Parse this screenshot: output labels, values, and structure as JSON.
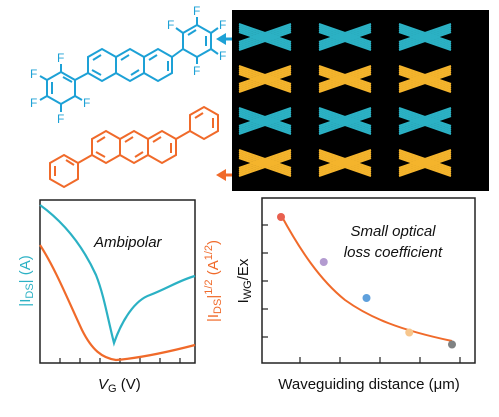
{
  "colors": {
    "blue": "#1da1d6",
    "orange": "#f06a2a",
    "gold": "#f4b42c",
    "teal": "#2bb1c4",
    "black": "#000000",
    "axis": "#222222"
  },
  "molecule_top": {
    "name_icon": "perfluorophenyl-anthracene-icon",
    "F": "F"
  },
  "molecule_bottom": {
    "name_icon": "diphenyl-anthracene-icon"
  },
  "crystal_panel": {
    "icon": "molecular-packing-icon",
    "rows": [
      "blue",
      "gold",
      "blue",
      "gold"
    ]
  },
  "left_plot": {
    "annotation": "Ambipolar",
    "ylabel_left": "|I",
    "ylabel_left_sub": "DS",
    "ylabel_left_tail": "| (A)",
    "ylabel_right": "|I",
    "ylabel_right_sub": "DS",
    "ylabel_right_mid": "|",
    "ylabel_right_sup": "1/2",
    "ylabel_right_tail": " (A",
    "ylabel_right_sup2": "1/2",
    "ylabel_right_end": ")",
    "xlabel": "V",
    "xlabel_sub": "G",
    "xlabel_tail": " (V)"
  },
  "right_plot": {
    "annotation_line1": "Small optical",
    "annotation_line2": "loss coefficient",
    "ylabel": "I",
    "ylabel_sub": "WG",
    "ylabel_tail": "/Ex",
    "xlabel": "Waveguiding distance (μm)"
  },
  "chart_data": {
    "type": "scatter",
    "points": [
      {
        "x": 1,
        "y": 0.92,
        "color": "#e8604f"
      },
      {
        "x": 2,
        "y": 0.62,
        "color": "#b39bd0"
      },
      {
        "x": 3,
        "y": 0.38,
        "color": "#5fa0dc"
      },
      {
        "x": 4,
        "y": 0.15,
        "color": "#f7c68c"
      },
      {
        "x": 5,
        "y": 0.07,
        "color": "#7f8283"
      }
    ],
    "fit_color": "#f06a2a"
  }
}
